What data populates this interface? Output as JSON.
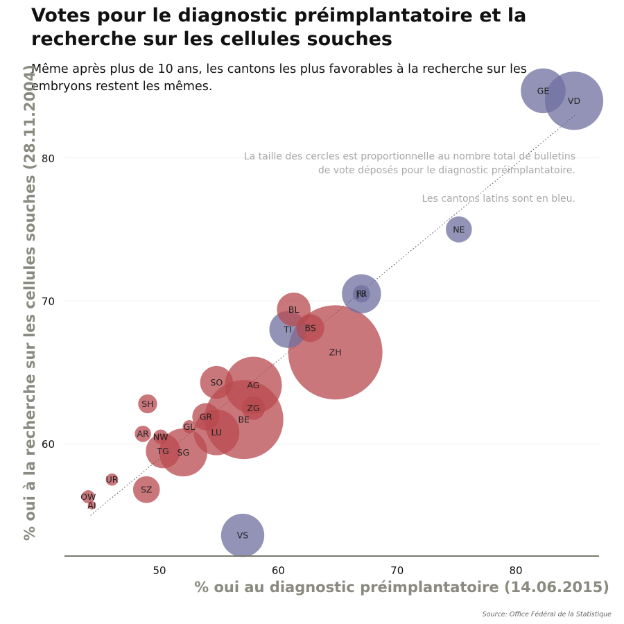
{
  "title": "Votes pour le diagnostic préimplantatoire et la recherche sur les cellules souches",
  "subtitle": "Même après plus de 10 ans, les cantons les plus favorables à la recherche sur les embryons restent les mêmes.",
  "source": "Source: Office Fédéral de la Statistique",
  "colors": {
    "german": "#b84a4f",
    "latin": "#6f6fa0",
    "axis": "#7a7a6e",
    "note": "#a8a8a8"
  },
  "chart_data": {
    "type": "scatter",
    "xlabel": "% oui au diagnostic préimplantatoire (14.06.2015)",
    "ylabel": "% oui à la recherche sur les cellules souches (28.11.2004)",
    "xlim": [
      42,
      87
    ],
    "ylim": [
      52.2,
      84.5
    ],
    "xticks": [
      50,
      60,
      70,
      80
    ],
    "yticks": [
      60,
      70,
      80
    ],
    "grid": true,
    "notes": [
      "La taille des cercles est proportionnelle au nombre total de bulletins",
      "de vote déposés pour le diagnostic préimplantatoire.",
      "Les cantons latins sont en bleu."
    ],
    "trend_line": {
      "x": [
        44.2,
        85.0
      ],
      "y": [
        55.0,
        83.0
      ]
    },
    "points": [
      {
        "label": "ZH",
        "x": 64.8,
        "y": 66.4,
        "ballots": 470000,
        "latin": false
      },
      {
        "label": "BE",
        "x": 57.1,
        "y": 61.7,
        "ballots": 330000,
        "latin": false
      },
      {
        "label": "VD",
        "x": 84.9,
        "y": 84.0,
        "ballots": 180000,
        "latin": true
      },
      {
        "label": "AG",
        "x": 57.9,
        "y": 64.1,
        "ballots": 172000,
        "latin": false
      },
      {
        "label": "SG",
        "x": 52.0,
        "y": 59.4,
        "ballots": 122000,
        "latin": false
      },
      {
        "label": "LU",
        "x": 54.8,
        "y": 60.8,
        "ballots": 110000,
        "latin": false
      },
      {
        "label": "GE",
        "x": 82.3,
        "y": 84.7,
        "ballots": 106000,
        "latin": true
      },
      {
        "label": "VS",
        "x": 57.0,
        "y": 53.6,
        "ballots": 99000,
        "latin": true
      },
      {
        "label": "FR",
        "x": 67.0,
        "y": 70.5,
        "ballots": 81000,
        "latin": true
      },
      {
        "label": "TI",
        "x": 60.8,
        "y": 68.0,
        "ballots": 72000,
        "latin": true
      },
      {
        "label": "TG",
        "x": 50.3,
        "y": 59.5,
        "ballots": 63000,
        "latin": false
      },
      {
        "label": "BL",
        "x": 61.3,
        "y": 69.4,
        "ballots": 60000,
        "latin": false
      },
      {
        "label": "SO",
        "x": 54.8,
        "y": 64.3,
        "ballots": 57000,
        "latin": false
      },
      {
        "label": "NE",
        "x": 75.2,
        "y": 75.0,
        "ballots": 36000,
        "latin": true
      },
      {
        "label": "BS",
        "x": 62.7,
        "y": 68.1,
        "ballots": 41000,
        "latin": false
      },
      {
        "label": "GR",
        "x": 53.9,
        "y": 61.9,
        "ballots": 39000,
        "latin": false
      },
      {
        "label": "JU",
        "x": 67.0,
        "y": 70.5,
        "ballots": 16000,
        "latin": true
      },
      {
        "label": "SZ",
        "x": 48.9,
        "y": 56.8,
        "ballots": 38000,
        "latin": false
      },
      {
        "label": "ZG",
        "x": 57.9,
        "y": 62.5,
        "ballots": 29000,
        "latin": false
      },
      {
        "label": "SH",
        "x": 49.0,
        "y": 62.8,
        "ballots": 19000,
        "latin": false
      },
      {
        "label": "AR",
        "x": 48.6,
        "y": 60.7,
        "ballots": 14000,
        "latin": false
      },
      {
        "label": "GL",
        "x": 52.5,
        "y": 61.2,
        "ballots": 9000,
        "latin": false
      },
      {
        "label": "NW",
        "x": 50.1,
        "y": 60.5,
        "ballots": 11000,
        "latin": false
      },
      {
        "label": "OW",
        "x": 44.0,
        "y": 56.3,
        "ballots": 9000,
        "latin": false
      },
      {
        "label": "UR",
        "x": 46.0,
        "y": 57.5,
        "ballots": 8000,
        "latin": false
      },
      {
        "label": "AI",
        "x": 44.3,
        "y": 55.7,
        "ballots": 3500,
        "latin": false
      }
    ]
  }
}
